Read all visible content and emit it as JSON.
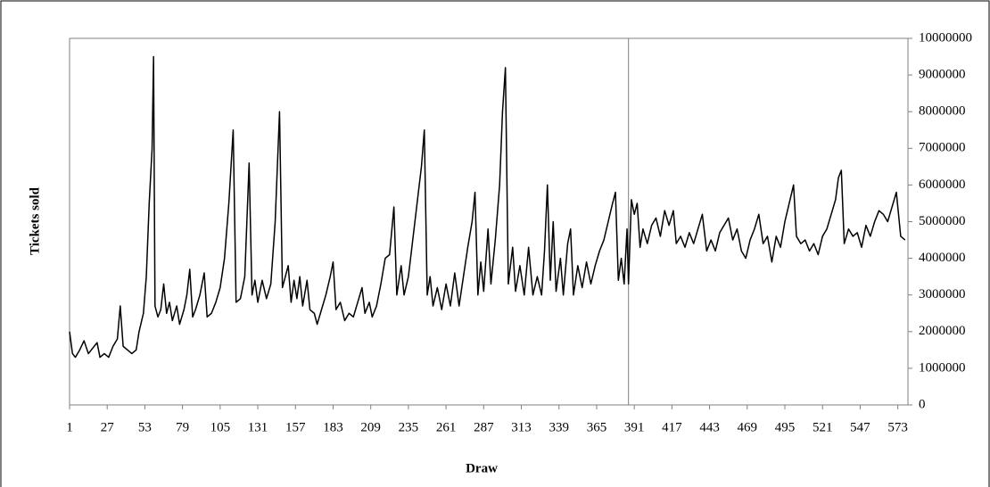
{
  "chart_data": {
    "type": "line",
    "x_label": "Draw",
    "y_label": "Tickets sold",
    "color": "#000000",
    "y_axis_side": "right",
    "vline_x": 387,
    "xlim": [
      1,
      580
    ],
    "xticks": [
      1,
      27,
      53,
      79,
      105,
      131,
      157,
      183,
      209,
      235,
      261,
      287,
      313,
      339,
      365,
      391,
      417,
      443,
      469,
      495,
      521,
      547,
      573
    ],
    "ylim": [
      0,
      10000000
    ],
    "yticks": [
      0,
      1000000,
      2000000,
      3000000,
      4000000,
      5000000,
      6000000,
      7000000,
      8000000,
      9000000,
      10000000
    ],
    "x": [
      1,
      3,
      5,
      8,
      11,
      14,
      17,
      20,
      22,
      25,
      28,
      31,
      34,
      36,
      38,
      41,
      44,
      47,
      49,
      52,
      54,
      56,
      58,
      59,
      60,
      62,
      64,
      66,
      68,
      70,
      72,
      75,
      77,
      80,
      82,
      84,
      86,
      88,
      91,
      94,
      96,
      99,
      102,
      105,
      108,
      111,
      114,
      116,
      119,
      122,
      125,
      127,
      129,
      131,
      134,
      137,
      140,
      143,
      146,
      148,
      150,
      152,
      154,
      156,
      158,
      160,
      162,
      165,
      167,
      170,
      172,
      175,
      178,
      181,
      183,
      185,
      188,
      191,
      194,
      197,
      200,
      203,
      205,
      208,
      210,
      213,
      216,
      219,
      222,
      225,
      227,
      230,
      232,
      235,
      238,
      241,
      244,
      246,
      248,
      250,
      252,
      255,
      258,
      261,
      264,
      267,
      270,
      273,
      276,
      279,
      281,
      283,
      285,
      287,
      290,
      292,
      295,
      298,
      300,
      302,
      304,
      307,
      309,
      312,
      315,
      318,
      321,
      324,
      327,
      329,
      331,
      333,
      335,
      337,
      340,
      342,
      345,
      347,
      349,
      352,
      355,
      358,
      361,
      364,
      367,
      370,
      373,
      376,
      378,
      380,
      382,
      384,
      386,
      387,
      389,
      391,
      393,
      395,
      397,
      400,
      403,
      406,
      409,
      412,
      415,
      418,
      420,
      423,
      426,
      429,
      432,
      435,
      438,
      441,
      444,
      447,
      450,
      453,
      456,
      459,
      462,
      465,
      468,
      471,
      474,
      477,
      480,
      483,
      486,
      489,
      492,
      495,
      498,
      501,
      503,
      506,
      509,
      512,
      515,
      518,
      521,
      524,
      527,
      530,
      532,
      534,
      536,
      539,
      542,
      545,
      548,
      551,
      554,
      557,
      560,
      563,
      566,
      569,
      572,
      575,
      578
    ],
    "values": [
      2000000,
      1400000,
      1300000,
      1500000,
      1750000,
      1400000,
      1550000,
      1700000,
      1300000,
      1400000,
      1300000,
      1600000,
      1800000,
      2700000,
      1600000,
      1500000,
      1400000,
      1500000,
      2000000,
      2500000,
      3500000,
      5500000,
      7000000,
      9500000,
      2700000,
      2400000,
      2600000,
      3300000,
      2500000,
      2800000,
      2300000,
      2700000,
      2200000,
      2600000,
      3000000,
      3700000,
      2400000,
      2600000,
      3000000,
      3600000,
      2400000,
      2500000,
      2800000,
      3200000,
      4000000,
      5500000,
      7500000,
      2800000,
      2900000,
      3500000,
      6600000,
      3000000,
      3400000,
      2800000,
      3400000,
      2900000,
      3300000,
      5000000,
      8000000,
      3200000,
      3500000,
      3800000,
      2800000,
      3400000,
      2900000,
      3500000,
      2700000,
      3400000,
      2600000,
      2500000,
      2200000,
      2600000,
      3000000,
      3500000,
      3900000,
      2600000,
      2800000,
      2300000,
      2500000,
      2400000,
      2800000,
      3200000,
      2500000,
      2800000,
      2400000,
      2700000,
      3300000,
      4000000,
      4100000,
      5400000,
      3000000,
      3800000,
      3000000,
      3500000,
      4500000,
      5500000,
      6500000,
      7500000,
      3000000,
      3500000,
      2700000,
      3200000,
      2600000,
      3300000,
      2700000,
      3600000,
      2700000,
      3500000,
      4300000,
      5000000,
      5800000,
      3000000,
      3900000,
      3100000,
      4800000,
      3300000,
      4500000,
      6000000,
      8000000,
      9200000,
      3300000,
      4300000,
      3100000,
      3800000,
      3000000,
      4300000,
      3000000,
      3500000,
      3000000,
      4200000,
      6000000,
      3400000,
      5000000,
      3100000,
      4000000,
      3000000,
      4400000,
      4800000,
      3000000,
      3800000,
      3200000,
      3900000,
      3300000,
      3800000,
      4200000,
      4500000,
      5000000,
      5500000,
      5800000,
      3400000,
      4000000,
      3300000,
      4800000,
      3300000,
      5600000,
      5200000,
      5500000,
      4300000,
      4800000,
      4400000,
      4900000,
      5100000,
      4600000,
      5300000,
      4900000,
      5300000,
      4400000,
      4600000,
      4300000,
      4700000,
      4400000,
      4800000,
      5200000,
      4200000,
      4500000,
      4200000,
      4700000,
      4900000,
      5100000,
      4500000,
      4800000,
      4200000,
      4000000,
      4500000,
      4800000,
      5200000,
      4400000,
      4600000,
      3900000,
      4600000,
      4300000,
      5000000,
      5500000,
      6000000,
      4600000,
      4400000,
      4500000,
      4200000,
      4400000,
      4100000,
      4600000,
      4800000,
      5200000,
      5600000,
      6200000,
      6400000,
      4400000,
      4800000,
      4600000,
      4700000,
      4300000,
      4900000,
      4600000,
      5000000,
      5300000,
      5200000,
      5000000,
      5400000,
      5800000,
      4600000,
      4500000
    ]
  }
}
